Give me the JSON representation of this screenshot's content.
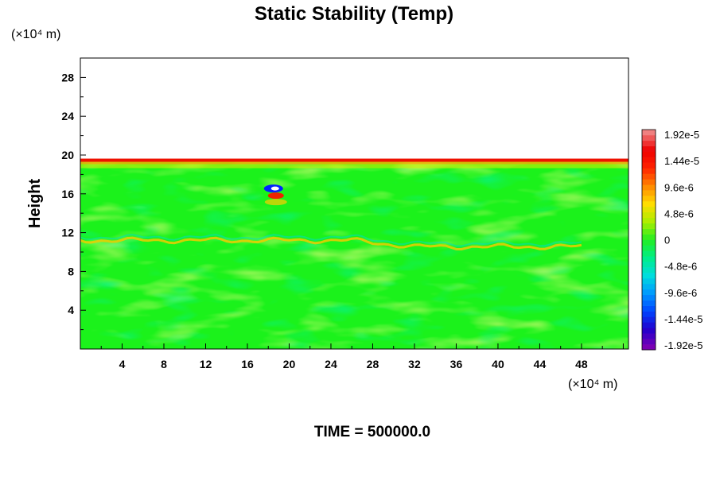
{
  "chart_data": {
    "type": "heatmap",
    "title": "Static Stability (Temp)",
    "ylabel": "Height",
    "x_unit": "(×10⁴ m)",
    "y_unit": "(×10⁴ m)",
    "xlim": [
      0,
      52.5
    ],
    "ylim": [
      0,
      30
    ],
    "x_ticks": [
      "4",
      "8",
      "12",
      "16",
      "20",
      "24",
      "28",
      "32",
      "36",
      "40",
      "44",
      "48"
    ],
    "y_ticks": [
      "4",
      "8",
      "12",
      "16",
      "20",
      "24",
      "28"
    ],
    "field_top_height": 19.5,
    "colorbar": {
      "labels": [
        "1.92e-5",
        "1.44e-5",
        "9.6e-6",
        "4.8e-6",
        "0",
        "-4.8e-6",
        "-9.6e-6",
        "-1.44e-5",
        "-1.92e-5"
      ],
      "min": -1.92e-05,
      "max": 1.92e-05,
      "colors_low_to_high": [
        "#7a00b4",
        "#2200cc",
        "#0044ff",
        "#0099ff",
        "#00dddd",
        "#00ee88",
        "#22ee22",
        "#aaee00",
        "#ffdd00",
        "#ff8800",
        "#ff2200",
        "#ee0000",
        "#f08080"
      ]
    },
    "features": [
      {
        "label": "positive band",
        "height": 19.3,
        "x_range": [
          0,
          52.5
        ],
        "level": "high"
      },
      {
        "label": "layer",
        "height": 11.2,
        "x_range": [
          0,
          48
        ],
        "level": "moderate"
      },
      {
        "label": "dipole",
        "x": 18.5,
        "height": 16.3,
        "level": "mixed"
      }
    ]
  },
  "footer": {
    "time_label": "TIME = 500000.0"
  }
}
